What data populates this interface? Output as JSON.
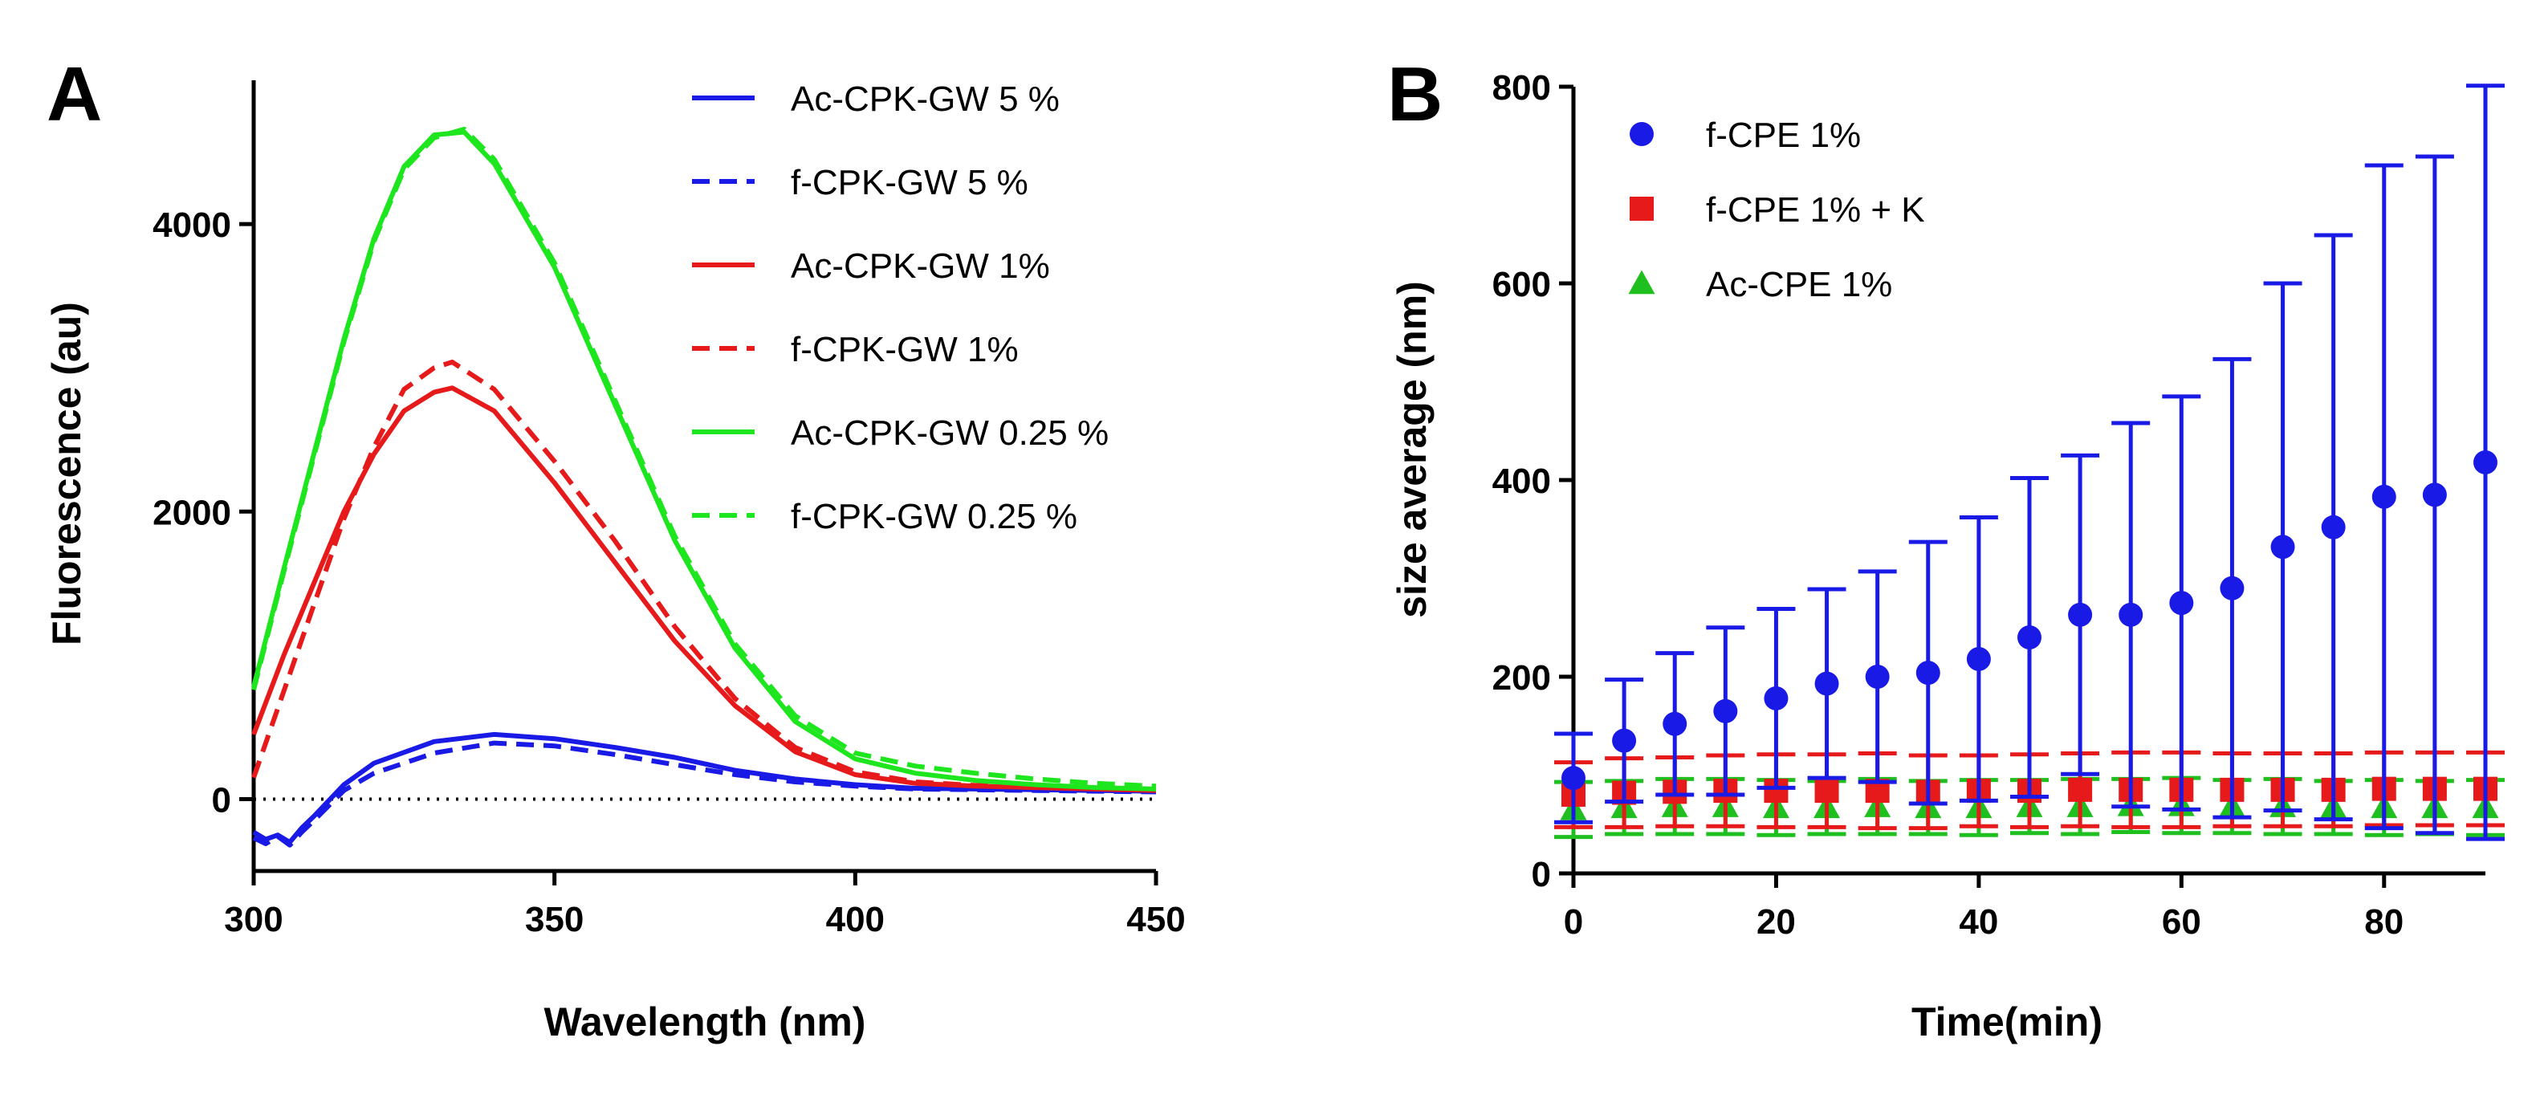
{
  "chart_data": [
    {
      "panel": "A",
      "type": "line",
      "title": "",
      "xlabel": "Wavelength (nm)",
      "ylabel": "Fluorescence (au)",
      "xlim": [
        300,
        450
      ],
      "ylim": [
        -500,
        5000
      ],
      "xticks": [
        300,
        350,
        400,
        450
      ],
      "yticks": [
        0,
        2000,
        4000
      ],
      "zero_line": "dotted",
      "legend_position": "top-right",
      "series": [
        {
          "name": "Ac-CPK-GW 5 %",
          "color": "#1a1ae6",
          "style": "solid",
          "x": [
            300,
            302,
            304,
            306,
            308,
            310,
            315,
            320,
            330,
            340,
            350,
            360,
            370,
            380,
            390,
            400,
            410,
            420,
            430,
            440,
            450
          ],
          "y": [
            -230,
            -280,
            -250,
            -300,
            -200,
            -120,
            100,
            250,
            400,
            450,
            420,
            360,
            290,
            200,
            140,
            100,
            75,
            70,
            65,
            60,
            55
          ]
        },
        {
          "name": "f-CPK-GW 5 %",
          "color": "#1a1ae6",
          "style": "dashed",
          "x": [
            300,
            302,
            304,
            306,
            308,
            310,
            315,
            320,
            330,
            340,
            350,
            360,
            370,
            380,
            390,
            400,
            410,
            420,
            430,
            440,
            450
          ],
          "y": [
            -270,
            -310,
            -260,
            -320,
            -230,
            -150,
            60,
            180,
            320,
            390,
            370,
            310,
            240,
            170,
            120,
            90,
            70,
            65,
            60,
            55,
            50
          ]
        },
        {
          "name": "Ac-CPK-GW 1%",
          "color": "#e61a1a",
          "style": "solid",
          "x": [
            300,
            305,
            310,
            315,
            320,
            325,
            330,
            333,
            340,
            350,
            360,
            370,
            380,
            390,
            400,
            410,
            420,
            430,
            440,
            450
          ],
          "y": [
            450,
            1000,
            1500,
            2000,
            2400,
            2700,
            2830,
            2860,
            2700,
            2200,
            1650,
            1100,
            650,
            330,
            170,
            110,
            90,
            80,
            70,
            60
          ]
        },
        {
          "name": "f-CPK-GW 1%",
          "color": "#e61a1a",
          "style": "dashed",
          "x": [
            300,
            305,
            310,
            315,
            320,
            325,
            330,
            333,
            340,
            350,
            360,
            370,
            380,
            390,
            400,
            410,
            420,
            430,
            440,
            450
          ],
          "y": [
            150,
            750,
            1350,
            1950,
            2450,
            2850,
            3000,
            3040,
            2850,
            2350,
            1800,
            1200,
            700,
            360,
            190,
            120,
            95,
            85,
            75,
            65
          ]
        },
        {
          "name": "Ac-CPK-GW 0.25 %",
          "color": "#1ee61e",
          "style": "solid",
          "x": [
            300,
            305,
            310,
            315,
            320,
            325,
            330,
            335,
            340,
            350,
            360,
            370,
            380,
            390,
            400,
            410,
            420,
            430,
            440,
            450
          ],
          "y": [
            780,
            1600,
            2400,
            3200,
            3900,
            4400,
            4620,
            4640,
            4420,
            3700,
            2750,
            1800,
            1050,
            540,
            280,
            180,
            130,
            100,
            80,
            70
          ]
        },
        {
          "name": "f-CPK-GW 0.25 %",
          "color": "#1ee61e",
          "style": "dashed",
          "x": [
            300,
            305,
            310,
            315,
            320,
            325,
            330,
            335,
            340,
            350,
            360,
            370,
            380,
            390,
            400,
            410,
            420,
            430,
            440,
            450
          ],
          "y": [
            760,
            1580,
            2380,
            3180,
            3880,
            4380,
            4600,
            4660,
            4450,
            3730,
            2780,
            1830,
            1080,
            580,
            320,
            230,
            180,
            140,
            110,
            90
          ]
        }
      ]
    },
    {
      "panel": "B",
      "type": "scatter",
      "title": "",
      "xlabel": "Time(min)",
      "ylabel": "size average (nm)",
      "xlim": [
        0,
        90
      ],
      "ylim": [
        0,
        800
      ],
      "xticks": [
        0,
        20,
        40,
        60,
        80
      ],
      "yticks": [
        0,
        200,
        400,
        600,
        800
      ],
      "legend_position": "top-left",
      "error_bars": true,
      "series": [
        {
          "name": "f-CPE 1%",
          "color": "#1a1ae6",
          "marker": "circle",
          "x": [
            0,
            5,
            10,
            15,
            20,
            25,
            30,
            35,
            40,
            45,
            50,
            55,
            60,
            65,
            70,
            75,
            80,
            85,
            90
          ],
          "y": [
            97,
            135,
            152,
            165,
            178,
            193,
            200,
            204,
            218,
            240,
            263,
            263,
            275,
            290,
            332,
            352,
            383,
            385,
            418
          ],
          "err": [
            45,
            62,
            72,
            85,
            91,
            96,
            107,
            133,
            144,
            162,
            162,
            195,
            210,
            233,
            268,
            297,
            337,
            344,
            383
          ]
        },
        {
          "name": "f-CPE 1% + K",
          "color": "#e61a1a",
          "marker": "square",
          "x": [
            0,
            5,
            10,
            15,
            20,
            25,
            30,
            35,
            40,
            45,
            50,
            55,
            60,
            65,
            70,
            75,
            80,
            85,
            90
          ],
          "y": [
            80,
            82,
            83,
            84,
            84,
            84,
            84,
            83,
            84,
            84,
            85,
            85,
            85,
            85,
            85,
            85,
            86,
            86,
            86
          ],
          "err": [
            33,
            35,
            35,
            36,
            37,
            37,
            38,
            37,
            36,
            37,
            37,
            38,
            38,
            37,
            37,
            37,
            37,
            37,
            37
          ]
        },
        {
          "name": "Ac-CPE 1%",
          "color": "#1ebf1e",
          "marker": "triangle",
          "x": [
            0,
            5,
            10,
            15,
            20,
            25,
            30,
            35,
            40,
            45,
            50,
            55,
            60,
            65,
            70,
            75,
            80,
            85,
            90
          ],
          "y": [
            65,
            67,
            68,
            68,
            67,
            67,
            68,
            67,
            67,
            68,
            68,
            69,
            69,
            68,
            68,
            67,
            67,
            67,
            67
          ],
          "err": [
            28,
            27,
            28,
            28,
            28,
            27,
            28,
            27,
            28,
            27,
            28,
            27,
            28,
            27,
            28,
            27,
            28,
            27,
            28
          ]
        }
      ]
    }
  ]
}
